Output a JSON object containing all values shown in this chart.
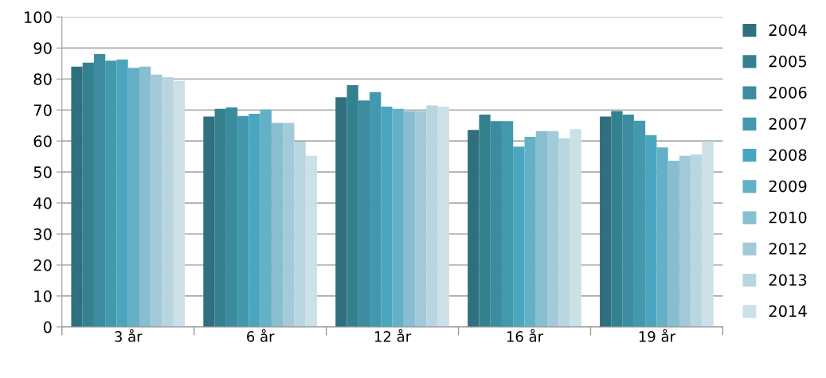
{
  "chart_data": {
    "type": "bar",
    "categories": [
      "3 år",
      "6 år",
      "12 år",
      "16 år",
      "19 år"
    ],
    "ylim": [
      0,
      100
    ],
    "yticks": [
      0,
      10,
      20,
      30,
      40,
      50,
      60,
      70,
      80,
      90,
      100
    ],
    "grid": "y",
    "legend": "right",
    "series": [
      {
        "name": "2004",
        "color": "#2f6f7e",
        "values": [
          84.0,
          67.9,
          74.1,
          63.6,
          67.9
        ]
      },
      {
        "name": "2005",
        "color": "#33808f",
        "values": [
          85.3,
          70.4,
          78.0,
          68.5,
          69.7
        ]
      },
      {
        "name": "2006",
        "color": "#3a8c9e",
        "values": [
          88.0,
          70.8,
          73.1,
          66.4,
          68.5
        ]
      },
      {
        "name": "2007",
        "color": "#4298ad",
        "values": [
          85.9,
          68.1,
          75.8,
          66.4,
          66.5
        ]
      },
      {
        "name": "2008",
        "color": "#4aa6bf",
        "values": [
          86.3,
          68.8,
          71.1,
          58.2,
          61.9
        ]
      },
      {
        "name": "2009",
        "color": "#63b0c7",
        "values": [
          83.6,
          70.1,
          70.4,
          61.3,
          57.9
        ]
      },
      {
        "name": "2010",
        "color": "#88bfd0",
        "values": [
          84.0,
          65.8,
          69.7,
          63.2,
          53.6
        ]
      },
      {
        "name": "2012",
        "color": "#a2cad9",
        "values": [
          81.4,
          65.8,
          69.7,
          63.2,
          55.2
        ]
      },
      {
        "name": "2013",
        "color": "#b9d6e0",
        "values": [
          80.6,
          59.8,
          71.5,
          60.9,
          55.6
        ]
      },
      {
        "name": "2014",
        "color": "#cce0e8",
        "values": [
          79.4,
          55.2,
          71.1,
          63.8,
          59.9
        ]
      }
    ]
  }
}
